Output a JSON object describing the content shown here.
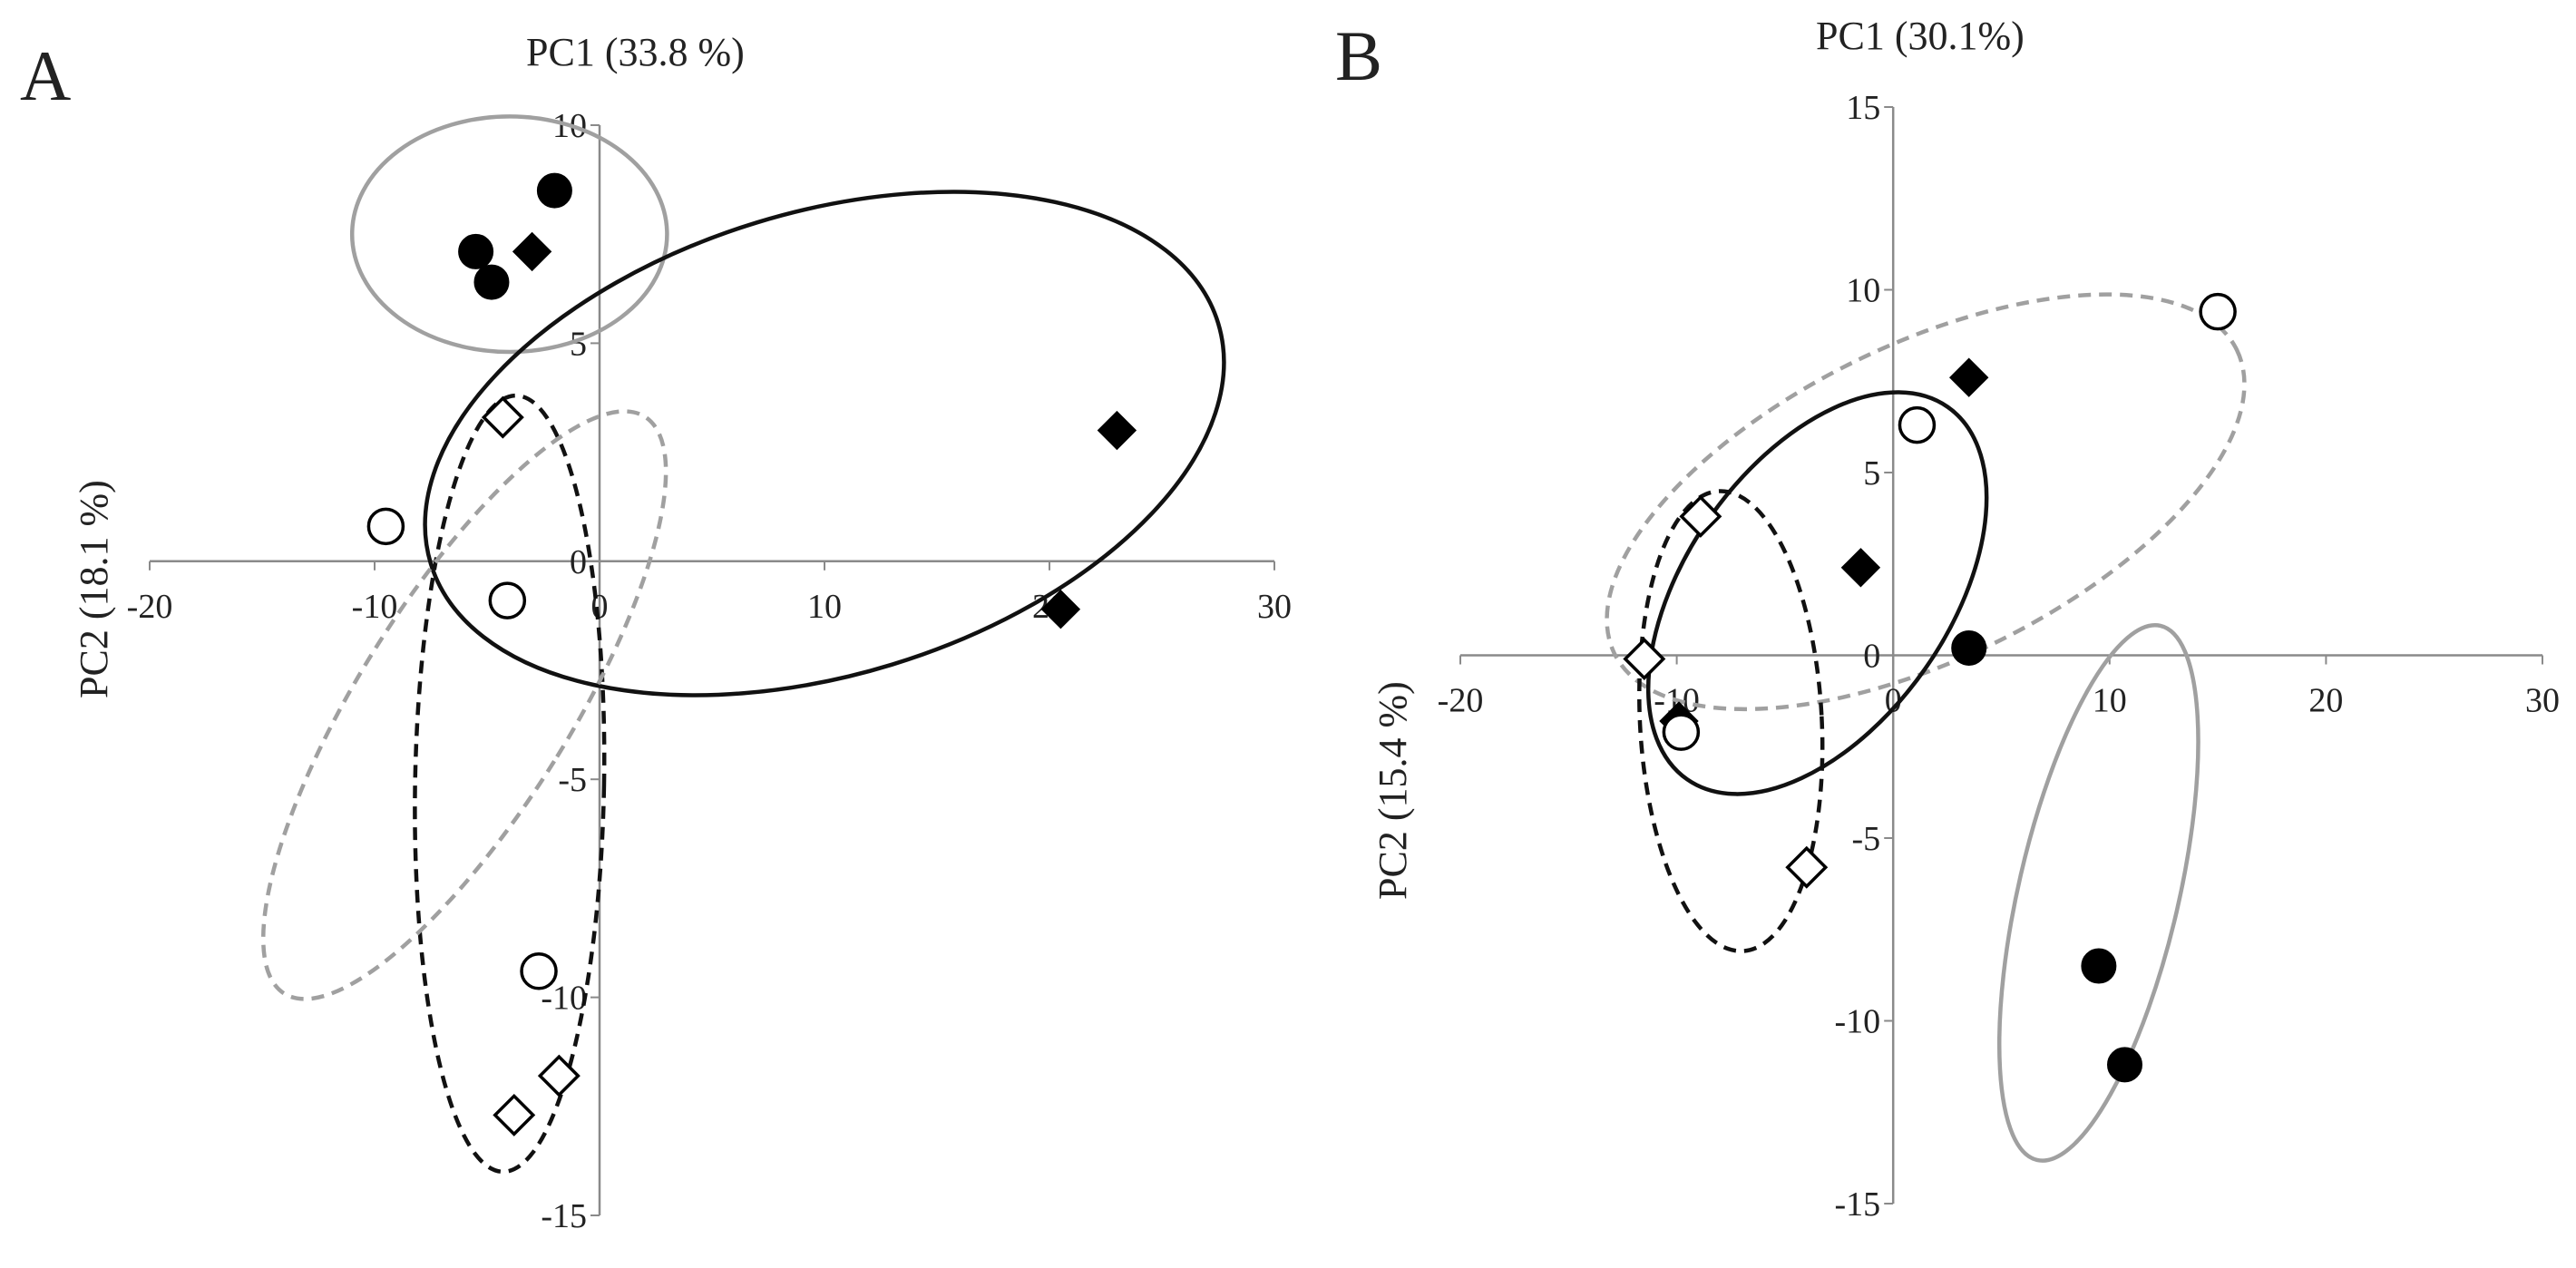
{
  "chart_data": [
    {
      "type": "scatter",
      "panel_label": "A",
      "xlabel": "PC1 (33.8 %)",
      "ylabel": "PC2 (18.1 %)",
      "xlim": [
        -20,
        30
      ],
      "ylim": [
        -15,
        10
      ],
      "xticks": [
        -20,
        -10,
        0,
        10,
        20,
        30
      ],
      "yticks": [
        -15,
        -10,
        -5,
        0,
        5,
        10
      ],
      "grid": false,
      "series": [
        {
          "marker": "filled-circle",
          "points": [
            [
              -2,
              8.5
            ],
            [
              -5.5,
              7.1
            ],
            [
              -4.8,
              6.4
            ]
          ]
        },
        {
          "marker": "filled-diamond",
          "points": [
            [
              -3,
              7.1
            ],
            [
              23,
              3
            ],
            [
              20.5,
              -1.1
            ]
          ]
        },
        {
          "marker": "open-circle",
          "points": [
            [
              -9.5,
              0.8
            ],
            [
              -4.1,
              -0.9
            ],
            [
              -2.7,
              -9.4
            ]
          ]
        },
        {
          "marker": "open-diamond",
          "points": [
            [
              -4.3,
              3.3
            ],
            [
              -3.8,
              -12.7
            ],
            [
              -1.8,
              -11.8
            ]
          ]
        }
      ],
      "ellipses": [
        {
          "center": [
            -4,
            7.5
          ],
          "rx": 7,
          "ry": 2.7,
          "angle": 0,
          "style": "solid",
          "color": "#a0a0a0"
        },
        {
          "center": [
            10,
            2.7
          ],
          "rx": 18.3,
          "ry": 5.3,
          "angle": -17,
          "style": "solid",
          "color": "#111111"
        },
        {
          "center": [
            -4,
            -5.1
          ],
          "rx": 4.2,
          "ry": 8.9,
          "angle": 1,
          "style": "dashed",
          "color": "#111111"
        },
        {
          "center": [
            -6,
            -3.3
          ],
          "rx": 4.7,
          "ry": 7.8,
          "angle": 32,
          "style": "dashed",
          "color": "#a0a0a0"
        }
      ]
    },
    {
      "type": "scatter",
      "panel_label": "B",
      "xlabel": "PC1 (30.1%)",
      "ylabel": "PC2 (15.4 %)",
      "xlim": [
        -20,
        30
      ],
      "ylim": [
        -15,
        15
      ],
      "xticks": [
        -20,
        -10,
        0,
        10,
        20,
        30
      ],
      "yticks": [
        -15,
        -10,
        -5,
        0,
        5,
        10,
        15
      ],
      "grid": false,
      "series": [
        {
          "marker": "filled-circle",
          "points": [
            [
              3.5,
              0.2
            ],
            [
              9.5,
              -8.5
            ],
            [
              10.7,
              -11.2
            ]
          ]
        },
        {
          "marker": "filled-diamond",
          "points": [
            [
              3.5,
              7.6
            ],
            [
              -1.5,
              2.4
            ],
            [
              -9.9,
              -1.8
            ]
          ]
        },
        {
          "marker": "open-circle",
          "points": [
            [
              15,
              9.4
            ],
            [
              1.1,
              6.3
            ],
            [
              -9.8,
              -2.1
            ]
          ]
        },
        {
          "marker": "open-diamond",
          "points": [
            [
              -8.9,
              3.8
            ],
            [
              -11.5,
              -0.1
            ],
            [
              -4,
              -5.8
            ]
          ]
        }
      ],
      "ellipses": [
        {
          "center": [
            1.5,
            4.2
          ],
          "rx": 16,
          "ry": 4.3,
          "angle": -26,
          "style": "dashed",
          "color": "#a0a0a0"
        },
        {
          "center": [
            -3.5,
            1.7
          ],
          "rx": 10.5,
          "ry": 3.6,
          "angle": -55,
          "style": "solid",
          "color": "#111111"
        },
        {
          "center": [
            -7.5,
            -1.8
          ],
          "rx": 4.2,
          "ry": 6.3,
          "angle": -3,
          "style": "dashed",
          "color": "#111111"
        },
        {
          "center": [
            9.5,
            -6.5
          ],
          "rx": 3.7,
          "ry": 7.5,
          "angle": 13,
          "style": "solid",
          "color": "#a0a0a0"
        }
      ]
    }
  ]
}
